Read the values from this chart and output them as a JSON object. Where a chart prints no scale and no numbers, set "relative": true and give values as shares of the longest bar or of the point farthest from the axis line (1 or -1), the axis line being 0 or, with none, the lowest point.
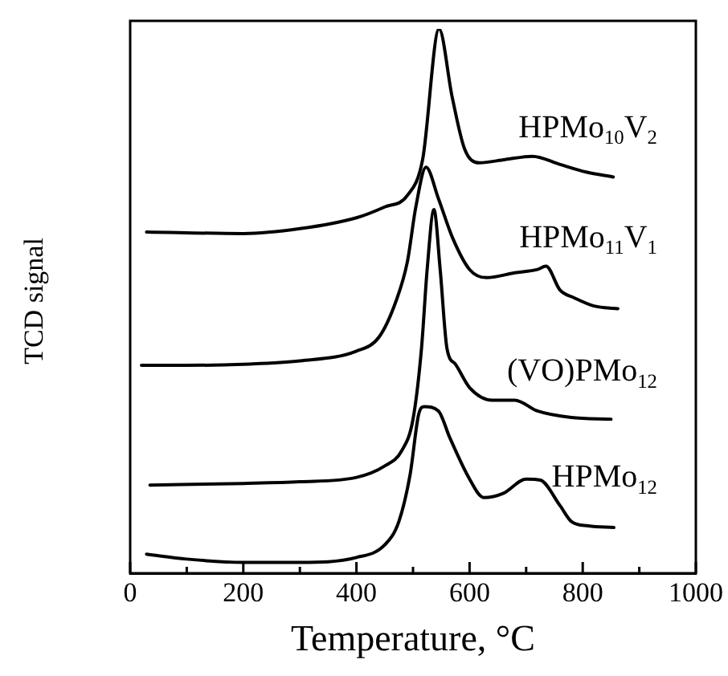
{
  "chart_data": {
    "type": "line",
    "relative": true,
    "xlabel": "Temperature, °C",
    "ylabel": "TCD signal",
    "xlim": [
      0,
      1000
    ],
    "xticks": [
      0,
      {
        "value": 100,
        "label": null
      },
      200,
      {
        "value": 300,
        "label": null
      },
      400,
      {
        "value": 500,
        "label": null
      },
      600,
      {
        "value": 700,
        "label": null
      },
      800,
      {
        "value": 900,
        "label": null
      },
      1000
    ],
    "grid": false,
    "legend": false,
    "marker": "none",
    "line_style": "solid",
    "series": [
      {
        "name": "HPMo$_{10}$V$_{2}$",
        "color": "#000000",
        "x": [
          29,
          200,
          300,
          400,
          450,
          490,
          517,
          546,
          569,
          591,
          617,
          663,
          711,
          760,
          806,
          854
        ],
        "values": [
          0.627,
          0.624,
          0.633,
          0.653,
          0.673,
          0.694,
          0.76,
          1,
          0.876,
          0.78,
          0.754,
          0.76,
          0.766,
          0.751,
          0.737,
          0.728
        ]
      },
      {
        "name": "HPMo$_{11}$V$_{1}$",
        "color": "#000000",
        "x": [
          20,
          100,
          200,
          300,
          400,
          440,
          470,
          490,
          505,
          523,
          545,
          570,
          600,
          630,
          680,
          720,
          735,
          760,
          785,
          820,
          862
        ],
        "values": [
          0.382,
          0.382,
          0.384,
          0.39,
          0.408,
          0.434,
          0.5,
          0.572,
          0.673,
          0.746,
          0.688,
          0.616,
          0.558,
          0.543,
          0.552,
          0.558,
          0.564,
          0.52,
          0.506,
          0.491,
          0.486
        ]
      },
      {
        "name": "(VO)PMo$_{12}$",
        "color": "#000000",
        "x": [
          35,
          200,
          300,
          400,
          450,
          480,
          500,
          515,
          525,
          537,
          548,
          560,
          575,
          600,
          640,
          680,
          720,
          780,
          850
        ],
        "values": [
          0.162,
          0.165,
          0.168,
          0.176,
          0.197,
          0.225,
          0.283,
          0.413,
          0.558,
          0.668,
          0.558,
          0.413,
          0.384,
          0.341,
          0.318,
          0.318,
          0.298,
          0.286,
          0.283
        ]
      },
      {
        "name": "HPMo$_{12}$",
        "color": "#000000",
        "x": [
          29,
          100,
          200,
          300,
          400,
          450,
          475,
          495,
          510,
          520,
          545,
          565,
          600,
          625,
          660,
          700,
          725,
          760,
          780,
          810,
          855
        ],
        "values": [
          0.035,
          0.026,
          0.02,
          0.02,
          0.029,
          0.052,
          0.095,
          0.182,
          0.292,
          0.306,
          0.298,
          0.249,
          0.173,
          0.139,
          0.147,
          0.173,
          0.171,
          0.124,
          0.095,
          0.087,
          0.084
        ]
      }
    ]
  }
}
